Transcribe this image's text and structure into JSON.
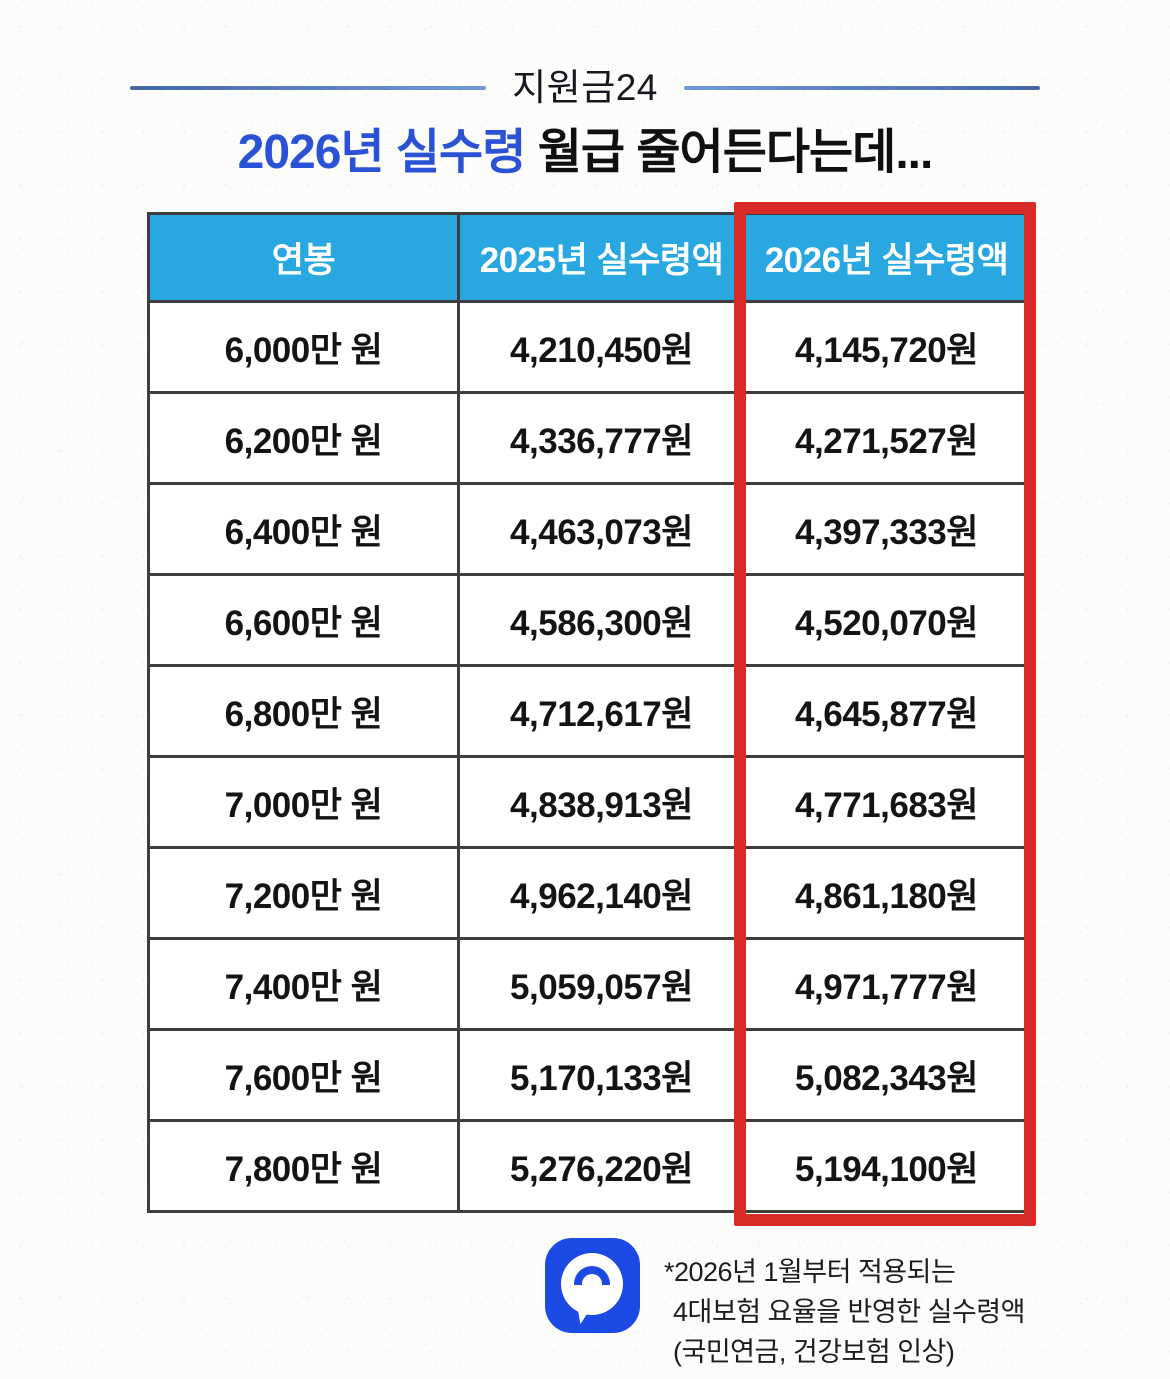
{
  "header": {
    "brand": "지원금24",
    "title_highlight": "2026년 실수령",
    "title_rest": " 월급 줄어든다는데..."
  },
  "table": {
    "headers": [
      "연봉",
      "2025년 실수령액",
      "2026년 실수령액"
    ],
    "rows": [
      [
        "6,000만 원",
        "4,210,450원",
        "4,145,720원"
      ],
      [
        "6,200만 원",
        "4,336,777원",
        "4,271,527원"
      ],
      [
        "6,400만 원",
        "4,463,073원",
        "4,397,333원"
      ],
      [
        "6,600만 원",
        "4,586,300원",
        "4,520,070원"
      ],
      [
        "6,800만 원",
        "4,712,617원",
        "4,645,877원"
      ],
      [
        "7,000만 원",
        "4,838,913원",
        "4,771,683원"
      ],
      [
        "7,200만 원",
        "4,962,140원",
        "4,861,180원"
      ],
      [
        "7,400만 원",
        "5,059,057원",
        "4,971,777원"
      ],
      [
        "7,600만 원",
        "5,170,133원",
        "5,082,343원"
      ],
      [
        "7,800만 원",
        "5,276,220원",
        "5,194,100원"
      ]
    ]
  },
  "footnote": {
    "lines": [
      "*2026년 1월부터 적용되는",
      "4대보험 요율을 반영한 실수령액",
      "(국민연금, 건강보험 인상)"
    ]
  },
  "colors": {
    "table_header_bg": "#29a7e1",
    "title_blue": "#2b52d4",
    "highlight_red": "#d92b27",
    "rule_blue": "#527cb6",
    "logo_blue": "#1c4ae4"
  }
}
